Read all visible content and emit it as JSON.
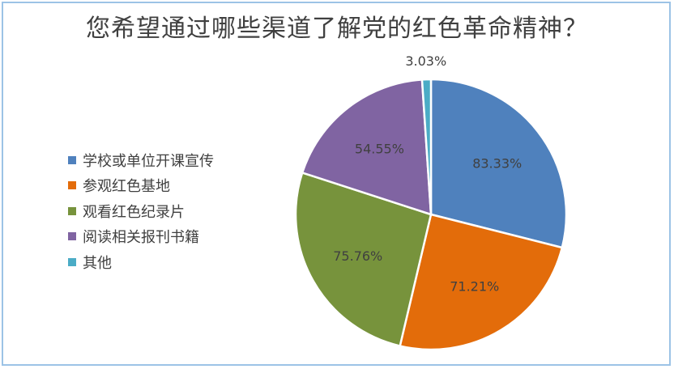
{
  "chart_data": {
    "type": "pie",
    "title": "您希望通过哪些渠道了解党的红色革命精神？",
    "categories": [
      "学校或单位开课宣传",
      "参观红色基地",
      "观看红色纪录片",
      "阅读相关报刊书籍",
      "其他"
    ],
    "values": [
      83.33,
      71.21,
      75.76,
      54.55,
      3.03
    ],
    "labels": [
      "83.33%",
      "71.21%",
      "75.76%",
      "54.55%",
      "3.03%"
    ],
    "colors": [
      "#4f81bd",
      "#e36c0a",
      "#77933c",
      "#8064a2",
      "#4bacc6"
    ],
    "legend_position": "left",
    "start_direction": "clockwise from top"
  }
}
